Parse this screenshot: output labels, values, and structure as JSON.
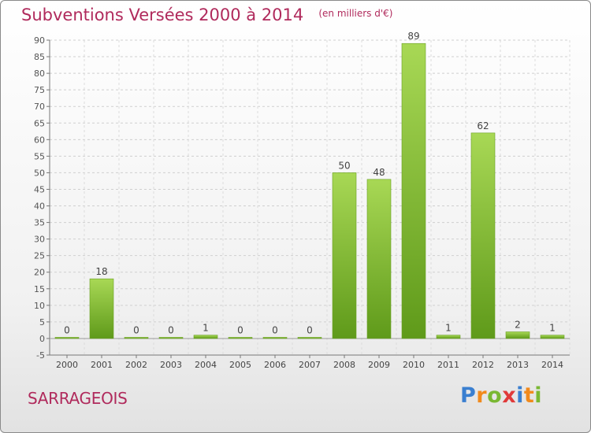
{
  "header": {
    "title": "Subventions Versées 2000 à 2014",
    "subtitle": "(en milliers d'€)"
  },
  "footer": {
    "commune": "SARRAGEOIS",
    "logo_letters": [
      "P",
      "r",
      "o",
      "x",
      "i",
      "t",
      "i"
    ]
  },
  "colors": {
    "title": "#b02a5c",
    "bar_light": "#a8d855",
    "bar_dark": "#5f9a1a",
    "logo": [
      "#3a7fd0",
      "#f18a1c",
      "#7ab833",
      "#e03a3a",
      "#3a7fd0",
      "#f18a1c",
      "#7ab833"
    ]
  },
  "chart_data": {
    "type": "bar",
    "categories": [
      "2000",
      "2001",
      "2002",
      "2003",
      "2004",
      "2005",
      "2006",
      "2007",
      "2008",
      "2009",
      "2010",
      "2011",
      "2012",
      "2013",
      "2014"
    ],
    "values": [
      0,
      18,
      0,
      0,
      1,
      0,
      0,
      0,
      50,
      48,
      89,
      1,
      62,
      2,
      1
    ],
    "value_labels": [
      "0",
      "18",
      "0",
      "0",
      "1",
      "0",
      "0",
      "0",
      "50",
      "48",
      "89",
      "1",
      "62",
      "2",
      "1"
    ],
    "ylim": [
      -5,
      90
    ],
    "yticks": [
      -5,
      0,
      5,
      10,
      15,
      20,
      25,
      30,
      35,
      40,
      45,
      50,
      55,
      60,
      65,
      70,
      75,
      80,
      85,
      90
    ],
    "ytick_labels": [
      "-5",
      "0",
      "5",
      "10",
      "15",
      "20",
      "25",
      "30",
      "35",
      "40",
      "45",
      "50",
      "55",
      "60",
      "65",
      "70",
      "75",
      "80",
      "85",
      "90"
    ],
    "grid": true,
    "xlabel": "",
    "ylabel": ""
  }
}
